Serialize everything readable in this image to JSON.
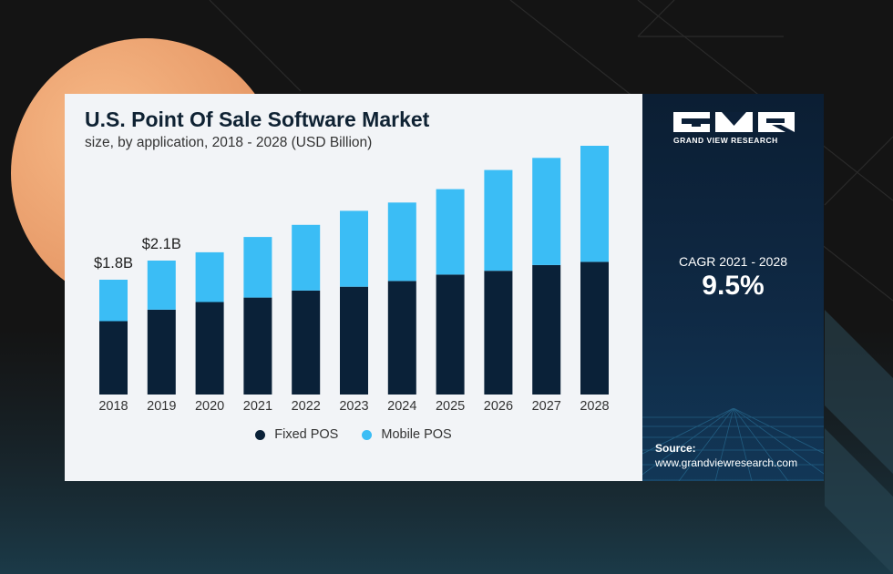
{
  "title": "U.S. Point Of Sale Software Market",
  "subtitle": "size, by application, 2018 - 2028 (USD Billion)",
  "brand": {
    "name": "GRAND VIEW RESEARCH"
  },
  "cagr": {
    "label": "CAGR 2021 - 2028",
    "value": "9.5%"
  },
  "source": {
    "label": "Source:",
    "url": "www.grandviewresearch.com"
  },
  "colors": {
    "fixed": "#0a2138",
    "mobile": "#3bbdf5",
    "card_bg": "#f2f4f7",
    "panel_bg": "#0c2038"
  },
  "chart_data": {
    "type": "bar",
    "stacked": true,
    "title": "U.S. Point Of Sale Software Market",
    "subtitle": "size, by application, 2018 - 2028 (USD Billion)",
    "categories": [
      "2018",
      "2019",
      "2020",
      "2021",
      "2022",
      "2023",
      "2024",
      "2025",
      "2026",
      "2027",
      "2028"
    ],
    "series": [
      {
        "name": "Fixed POS",
        "values": [
          1.15,
          1.33,
          1.45,
          1.52,
          1.63,
          1.69,
          1.78,
          1.88,
          1.94,
          2.03,
          2.08
        ]
      },
      {
        "name": "Mobile POS",
        "values": [
          0.65,
          0.77,
          0.78,
          0.95,
          1.03,
          1.19,
          1.23,
          1.34,
          1.58,
          1.68,
          1.82
        ]
      }
    ],
    "data_labels": [
      {
        "category": "2018",
        "text": "$1.8B"
      },
      {
        "category": "2019",
        "text": "$2.1B"
      }
    ],
    "ylim": [
      0,
      4.0
    ],
    "xlabel": "",
    "ylabel": "",
    "grid": false,
    "y_axis_visible": false,
    "legend": {
      "position": "bottom",
      "entries": [
        "Fixed POS",
        "Mobile POS"
      ]
    }
  }
}
